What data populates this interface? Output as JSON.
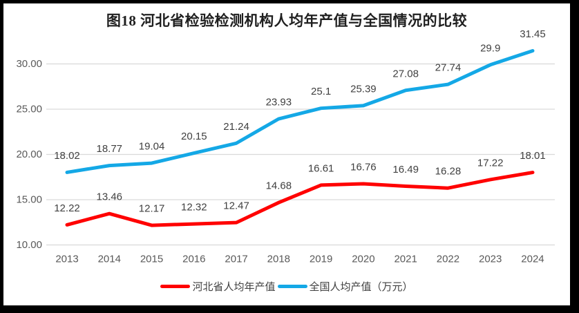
{
  "frame": {
    "border_color": "#000000",
    "background": "#ffffff"
  },
  "chart_data": {
    "type": "line",
    "title": "图18 河北省检验检测机构人均年产值与全国情况的比较",
    "categories": [
      "2013",
      "2014",
      "2015",
      "2016",
      "2017",
      "2018",
      "2019",
      "2020",
      "2021",
      "2022",
      "2023",
      "2024"
    ],
    "series": [
      {
        "name": "河北省人均年产值",
        "color": "#ff0000",
        "values": [
          12.22,
          13.46,
          12.17,
          12.32,
          12.47,
          14.68,
          16.61,
          16.76,
          16.49,
          16.28,
          17.22,
          18.01
        ],
        "labels": [
          "12.22",
          "13.46",
          "12.17",
          "12.32",
          "12.47",
          "14.68",
          "16.61",
          "16.76",
          "16.49",
          "16.28",
          "17.22",
          "18.01"
        ]
      },
      {
        "name": "全国人均产值（万元）",
        "color": "#14a8e6",
        "values": [
          18.02,
          18.77,
          19.04,
          20.15,
          21.24,
          23.93,
          25.1,
          25.39,
          27.08,
          27.74,
          29.9,
          31.45
        ],
        "labels": [
          "18.02",
          "18.77",
          "19.04",
          "20.15",
          "21.24",
          "23.93",
          "25.1",
          "25.39",
          "27.08",
          "27.74",
          "29.9",
          "31.45"
        ]
      }
    ],
    "y_ticks": [
      {
        "value": 10,
        "label": "10.00"
      },
      {
        "value": 15,
        "label": "15.00"
      },
      {
        "value": 20,
        "label": "20.00"
      },
      {
        "value": 25,
        "label": "25.00"
      },
      {
        "value": 30,
        "label": "30.00"
      }
    ],
    "ylim": [
      10,
      32
    ],
    "grid": "horizontal",
    "gridline_color": "#d9d9d9",
    "axis_text_color": "#595959",
    "data_label_color": "#404040",
    "legend_position": "bottom"
  }
}
